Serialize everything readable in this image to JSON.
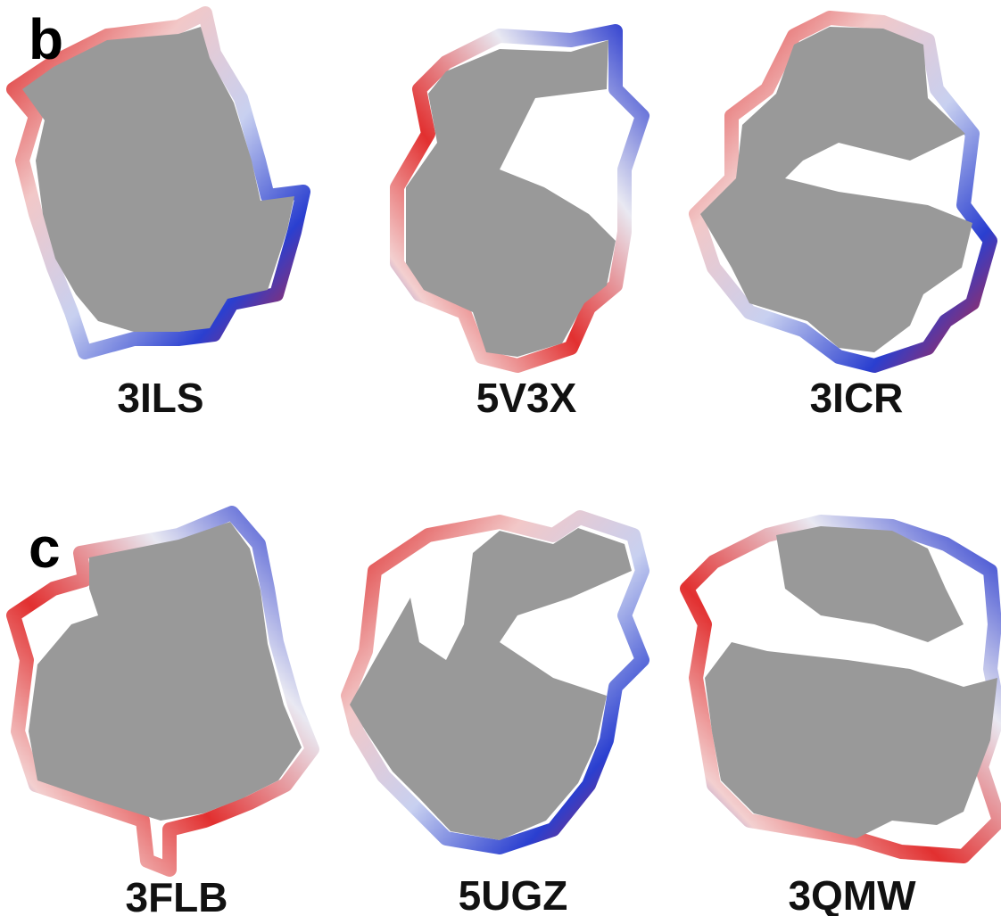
{
  "panels": [
    {
      "label": "b",
      "structures": [
        "3ILS",
        "5V3X",
        "3ICR"
      ]
    },
    {
      "label": "c",
      "structures": [
        "3FLB",
        "5UGZ",
        "3QMW"
      ]
    }
  ]
}
